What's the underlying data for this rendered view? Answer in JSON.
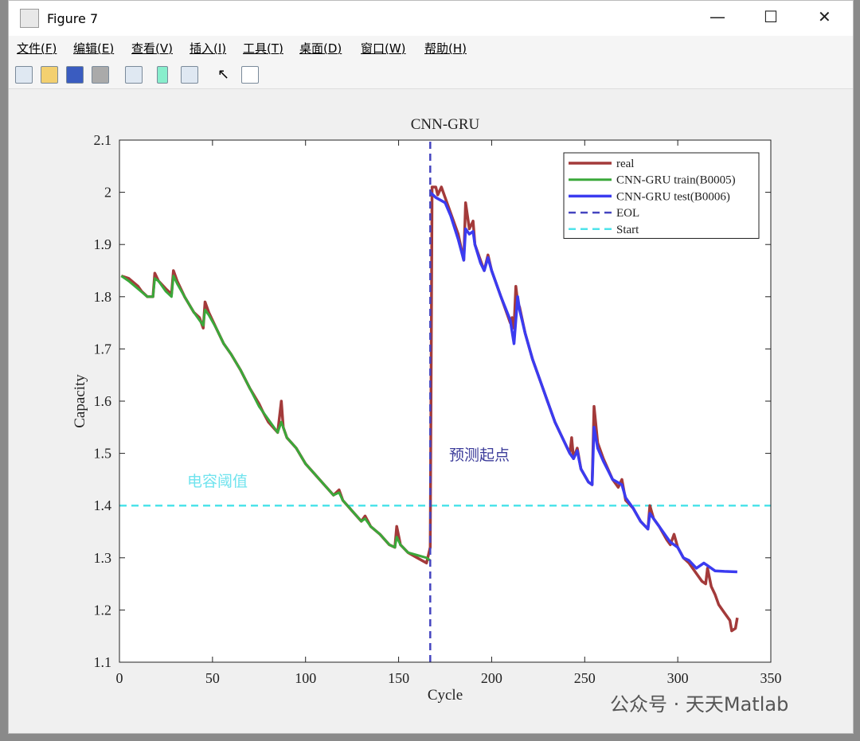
{
  "window": {
    "title": "Figure 7",
    "menu": [
      "文件(F)",
      "编辑(E)",
      "查看(V)",
      "插入(I)",
      "工具(T)",
      "桌面(D)",
      "窗口(W)",
      "帮助(H)"
    ]
  },
  "watermark": "公众号 · 天天Matlab",
  "chart_data": {
    "type": "line",
    "title": "CNN-GRU",
    "x_label": "Cycle",
    "y_label": "Capacity",
    "xlim": [
      0,
      350
    ],
    "xticks": [
      0,
      50,
      100,
      150,
      200,
      250,
      300,
      350
    ],
    "ylim": [
      1.1,
      2.1
    ],
    "yticks": [
      1.1,
      1.2,
      1.3,
      1.4,
      1.5,
      1.6,
      1.7,
      1.8,
      1.9,
      2,
      2.1
    ],
    "legend": "top-right",
    "grid": false,
    "annotations": [
      {
        "text": "电容阈值",
        "color": "#6fe3ee"
      },
      {
        "text": "预测起点",
        "color": "#3c3c9a"
      }
    ],
    "series": [
      {
        "name": "real",
        "color": "#a33a3a",
        "linestyle": "solid",
        "width": 3.5,
        "x": [
          1,
          5,
          10,
          12,
          15,
          18,
          19,
          21,
          25,
          28,
          29,
          31,
          35,
          40,
          43,
          45,
          46,
          48,
          52,
          56,
          60,
          65,
          70,
          75,
          77,
          80,
          85,
          87,
          88,
          90,
          95,
          100,
          105,
          110,
          115,
          118,
          120,
          125,
          130,
          132,
          135,
          140,
          145,
          148,
          149,
          151,
          155,
          160,
          165,
          167,
          168,
          170,
          171,
          173,
          175,
          178,
          182,
          185,
          186,
          188,
          190,
          191,
          194,
          196,
          198,
          200,
          205,
          210,
          211,
          212,
          213,
          214,
          215,
          218,
          222,
          226,
          230,
          234,
          238,
          242,
          243,
          244,
          246,
          248,
          252,
          254,
          255,
          257,
          260,
          265,
          268,
          270,
          272,
          276,
          280,
          284,
          285,
          287,
          290,
          294,
          296,
          298,
          300,
          303,
          306,
          310,
          313,
          315,
          316,
          318,
          320,
          322,
          325,
          328,
          329,
          331,
          332
        ],
        "values": [
          1.84,
          1.835,
          1.82,
          1.81,
          1.8,
          1.8,
          1.845,
          1.83,
          1.815,
          1.805,
          1.85,
          1.83,
          1.8,
          1.77,
          1.76,
          1.74,
          1.79,
          1.77,
          1.74,
          1.71,
          1.69,
          1.66,
          1.625,
          1.595,
          1.58,
          1.56,
          1.54,
          1.6,
          1.55,
          1.53,
          1.51,
          1.48,
          1.46,
          1.44,
          1.42,
          1.43,
          1.41,
          1.39,
          1.37,
          1.38,
          1.36,
          1.345,
          1.325,
          1.32,
          1.36,
          1.325,
          1.31,
          1.3,
          1.29,
          1.32,
          2.01,
          2.01,
          1.995,
          2.01,
          1.99,
          1.96,
          1.92,
          1.87,
          1.98,
          1.93,
          1.945,
          1.9,
          1.87,
          1.85,
          1.88,
          1.85,
          1.8,
          1.75,
          1.76,
          1.74,
          1.82,
          1.79,
          1.78,
          1.73,
          1.68,
          1.64,
          1.6,
          1.56,
          1.53,
          1.5,
          1.53,
          1.49,
          1.51,
          1.47,
          1.445,
          1.44,
          1.59,
          1.52,
          1.49,
          1.45,
          1.435,
          1.45,
          1.41,
          1.395,
          1.37,
          1.355,
          1.4,
          1.375,
          1.36,
          1.335,
          1.325,
          1.345,
          1.32,
          1.3,
          1.29,
          1.27,
          1.255,
          1.25,
          1.28,
          1.245,
          1.23,
          1.21,
          1.195,
          1.18,
          1.16,
          1.165,
          1.185
        ]
      },
      {
        "name": "CNN-GRU train(B0005)",
        "color": "#3aa83a",
        "linestyle": "solid",
        "width": 3,
        "x": [
          1,
          5,
          10,
          15,
          18,
          19,
          21,
          25,
          28,
          29,
          31,
          35,
          40,
          45,
          46,
          48,
          52,
          56,
          60,
          65,
          70,
          75,
          80,
          85,
          87,
          90,
          95,
          100,
          105,
          110,
          115,
          118,
          120,
          125,
          130,
          132,
          135,
          140,
          145,
          148,
          149,
          151,
          155,
          160,
          165,
          167
        ],
        "values": [
          1.84,
          1.83,
          1.815,
          1.8,
          1.8,
          1.835,
          1.83,
          1.81,
          1.8,
          1.84,
          1.825,
          1.8,
          1.77,
          1.745,
          1.775,
          1.765,
          1.74,
          1.71,
          1.69,
          1.66,
          1.625,
          1.59,
          1.565,
          1.54,
          1.56,
          1.53,
          1.51,
          1.48,
          1.46,
          1.44,
          1.42,
          1.425,
          1.41,
          1.39,
          1.37,
          1.375,
          1.36,
          1.345,
          1.325,
          1.32,
          1.34,
          1.325,
          1.31,
          1.305,
          1.3,
          1.295
        ]
      },
      {
        "name": "CNN-GRU test(B0006)",
        "color": "#3b3bf0",
        "linestyle": "solid",
        "width": 3.5,
        "x": [
          167,
          170,
          175,
          178,
          182,
          185,
          186,
          188,
          190,
          191,
          194,
          196,
          198,
          200,
          205,
          210,
          212,
          214,
          215,
          218,
          222,
          226,
          230,
          234,
          238,
          242,
          244,
          246,
          248,
          252,
          254,
          255,
          257,
          260,
          265,
          270,
          272,
          276,
          280,
          284,
          285,
          287,
          290,
          294,
          296,
          300,
          303,
          306,
          310,
          314,
          316,
          320,
          325,
          332
        ],
        "values": [
          2,
          1.99,
          1.98,
          1.955,
          1.91,
          1.87,
          1.93,
          1.92,
          1.925,
          1.9,
          1.865,
          1.85,
          1.875,
          1.85,
          1.8,
          1.755,
          1.71,
          1.8,
          1.775,
          1.73,
          1.68,
          1.64,
          1.6,
          1.56,
          1.53,
          1.5,
          1.49,
          1.505,
          1.47,
          1.445,
          1.44,
          1.55,
          1.51,
          1.485,
          1.45,
          1.44,
          1.415,
          1.395,
          1.37,
          1.355,
          1.385,
          1.375,
          1.36,
          1.34,
          1.33,
          1.32,
          1.3,
          1.295,
          1.28,
          1.29,
          1.285,
          1.275,
          1.274,
          1.273
        ]
      },
      {
        "name": "EOL",
        "color": "#4545c0",
        "linestyle": "dashed",
        "width": 2.5,
        "x": [
          167,
          167
        ],
        "values": [
          1.1,
          2.1
        ]
      },
      {
        "name": "Start",
        "color": "#4ee3ea",
        "linestyle": "dashed",
        "width": 2.5,
        "x": [
          0,
          350
        ],
        "values": [
          1.4,
          1.4
        ]
      }
    ]
  }
}
